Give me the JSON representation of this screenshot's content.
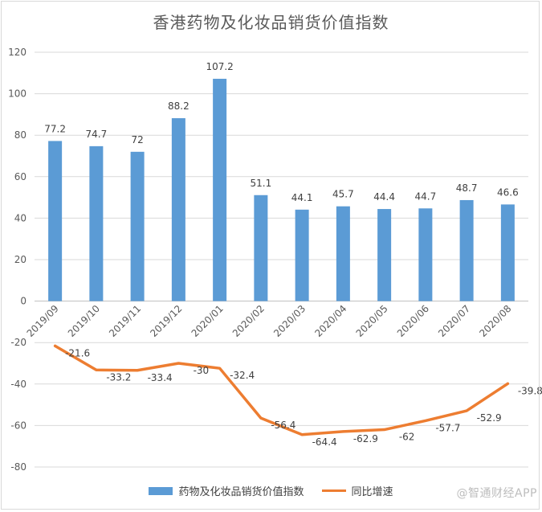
{
  "chart_data": {
    "type": "bar+line",
    "title": "香港药物及化妆品销货价值指数",
    "categories": [
      "2019/09",
      "2019/10",
      "2019/11",
      "2019/12",
      "2020/01",
      "2020/02",
      "2020/03",
      "2020/04",
      "2020/05",
      "2020/06",
      "2020/07",
      "2020/08"
    ],
    "series": [
      {
        "name": "药物及化妆品销货价值指数",
        "kind": "bar",
        "color": "#5b9bd5",
        "values": [
          77.2,
          74.7,
          72,
          88.2,
          107.2,
          51.1,
          44.1,
          45.7,
          44.4,
          44.7,
          48.7,
          46.6
        ],
        "labels": [
          "77.2",
          "74.7",
          "72",
          "88.2",
          "107.2",
          "51.1",
          "44.1",
          "45.7",
          "44.4",
          "44.7",
          "48.7",
          "46.6"
        ]
      },
      {
        "name": "同比增速",
        "kind": "line",
        "color": "#ed7d31",
        "values": [
          -21.6,
          -33.2,
          -33.4,
          -30,
          -32.4,
          -56.4,
          -64.4,
          -62.9,
          -62,
          -57.7,
          -52.9,
          -39.8
        ],
        "labels": [
          "-21.6",
          "-33.2",
          "-33.4",
          "-30",
          "-32.4",
          "-56.4",
          "-64.4",
          "-62.9",
          "-62",
          "-57.7",
          "-52.9",
          "-39.8"
        ]
      }
    ],
    "ylim": [
      -80,
      120
    ],
    "yticks": [
      "120",
      "100",
      "80",
      "60",
      "40",
      "20",
      "0",
      "-20",
      "-40",
      "-60",
      "-80"
    ],
    "ytick_values": [
      120,
      100,
      80,
      60,
      40,
      20,
      0,
      -20,
      -40,
      -60,
      -80
    ],
    "grid": true,
    "legend": "bottom"
  },
  "watermark": "@智通财经APP"
}
